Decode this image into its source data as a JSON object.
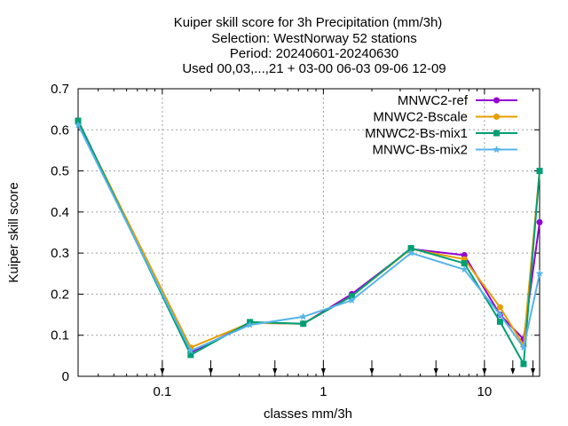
{
  "chart_data": {
    "type": "line",
    "title_lines": [
      "Kuiper skill score  for 3h Precipitation (mm/3h)",
      "Selection: WestNorway     52 stations",
      "Period: 20240601-20240630",
      "Used 00,03,...,21 + 03-00 06-03 09-06 12-09"
    ],
    "xlabel": "classes mm/3h",
    "ylabel": "Kuiper skill score",
    "x_scale": "log",
    "xlim": [
      0.03,
      22
    ],
    "ylim": [
      0,
      0.7
    ],
    "x_ticks": [
      0.1,
      1,
      10
    ],
    "x_tick_labels": [
      "0.1",
      "1",
      "10"
    ],
    "y_ticks": [
      0,
      0.1,
      0.2,
      0.3,
      0.4,
      0.5,
      0.6,
      0.7
    ],
    "y_tick_labels": [
      "0",
      "0.1",
      "0.2",
      "0.3",
      "0.4",
      "0.5",
      "0.6",
      "0.7"
    ],
    "grid": true,
    "legend_position": "top-right",
    "threshold_arrows": [
      0.1,
      0.2,
      0.5,
      1,
      2,
      5,
      10,
      15,
      20
    ],
    "x": [
      0.03,
      0.15,
      0.35,
      0.75,
      1.5,
      3.5,
      7.5,
      12.5,
      17.5,
      22
    ],
    "series": [
      {
        "name": "MNWC2-ref",
        "color": "#9400d3",
        "marker": "circle",
        "values": [
          0.622,
          0.058,
          0.13,
          0.128,
          0.2,
          0.31,
          0.295,
          0.15,
          0.09,
          0.375
        ]
      },
      {
        "name": "MNWC2-Bscale",
        "color": "#e69f00",
        "marker": "circle",
        "values": [
          0.62,
          0.07,
          0.13,
          0.128,
          0.195,
          0.31,
          0.285,
          0.168,
          0.075,
          0.5
        ]
      },
      {
        "name": "MNWC2-Bs-mix1",
        "color": "#009e73",
        "marker": "square",
        "values": [
          0.622,
          0.052,
          0.132,
          0.128,
          0.195,
          0.312,
          0.275,
          0.133,
          0.03,
          0.5
        ]
      },
      {
        "name": "MNWC-Bs-mix2",
        "color": "#56b4e9",
        "marker": "star",
        "values": [
          0.612,
          0.062,
          0.125,
          0.145,
          0.185,
          0.3,
          0.26,
          0.15,
          0.07,
          0.25
        ]
      }
    ]
  }
}
